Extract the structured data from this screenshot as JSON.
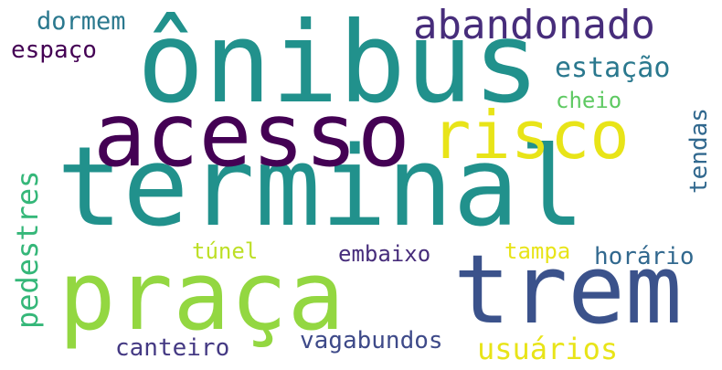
{
  "words": {
    "terminal": {
      "text": "terminal",
      "color": "#21918c"
    },
    "onibus": {
      "text": "ônibus",
      "color": "#21918c"
    },
    "acesso": {
      "text": "acesso",
      "color": "#440154"
    },
    "risco": {
      "text": "risco",
      "color": "#e8e418"
    },
    "praca": {
      "text": "praça",
      "color": "#93d741"
    },
    "trem": {
      "text": "trem",
      "color": "#3b528b"
    },
    "abandonado": {
      "text": "abandonado",
      "color": "#472d7b"
    },
    "estacao": {
      "text": "estação",
      "color": "#2a788e"
    },
    "cheio": {
      "text": "cheio",
      "color": "#5ec962"
    },
    "dormem": {
      "text": "dormem",
      "color": "#2a788e"
    },
    "espaco": {
      "text": "espaço",
      "color": "#440154"
    },
    "tunel": {
      "text": "túnel",
      "color": "#bddf26"
    },
    "embaixo": {
      "text": "embaixo",
      "color": "#472d7b"
    },
    "tampa": {
      "text": "tampa",
      "color": "#e8e418"
    },
    "horario": {
      "text": "horário",
      "color": "#31688e"
    },
    "canteiro": {
      "text": "canteiro",
      "color": "#443983"
    },
    "vagabundos": {
      "text": "vagabundos",
      "color": "#3e4a89"
    },
    "usuarios": {
      "text": "usuários",
      "color": "#e8e418"
    },
    "pedestres": {
      "text": "pedestres",
      "color": "#35b779"
    },
    "tendas": {
      "text": "tendas",
      "color": "#31688e"
    }
  }
}
